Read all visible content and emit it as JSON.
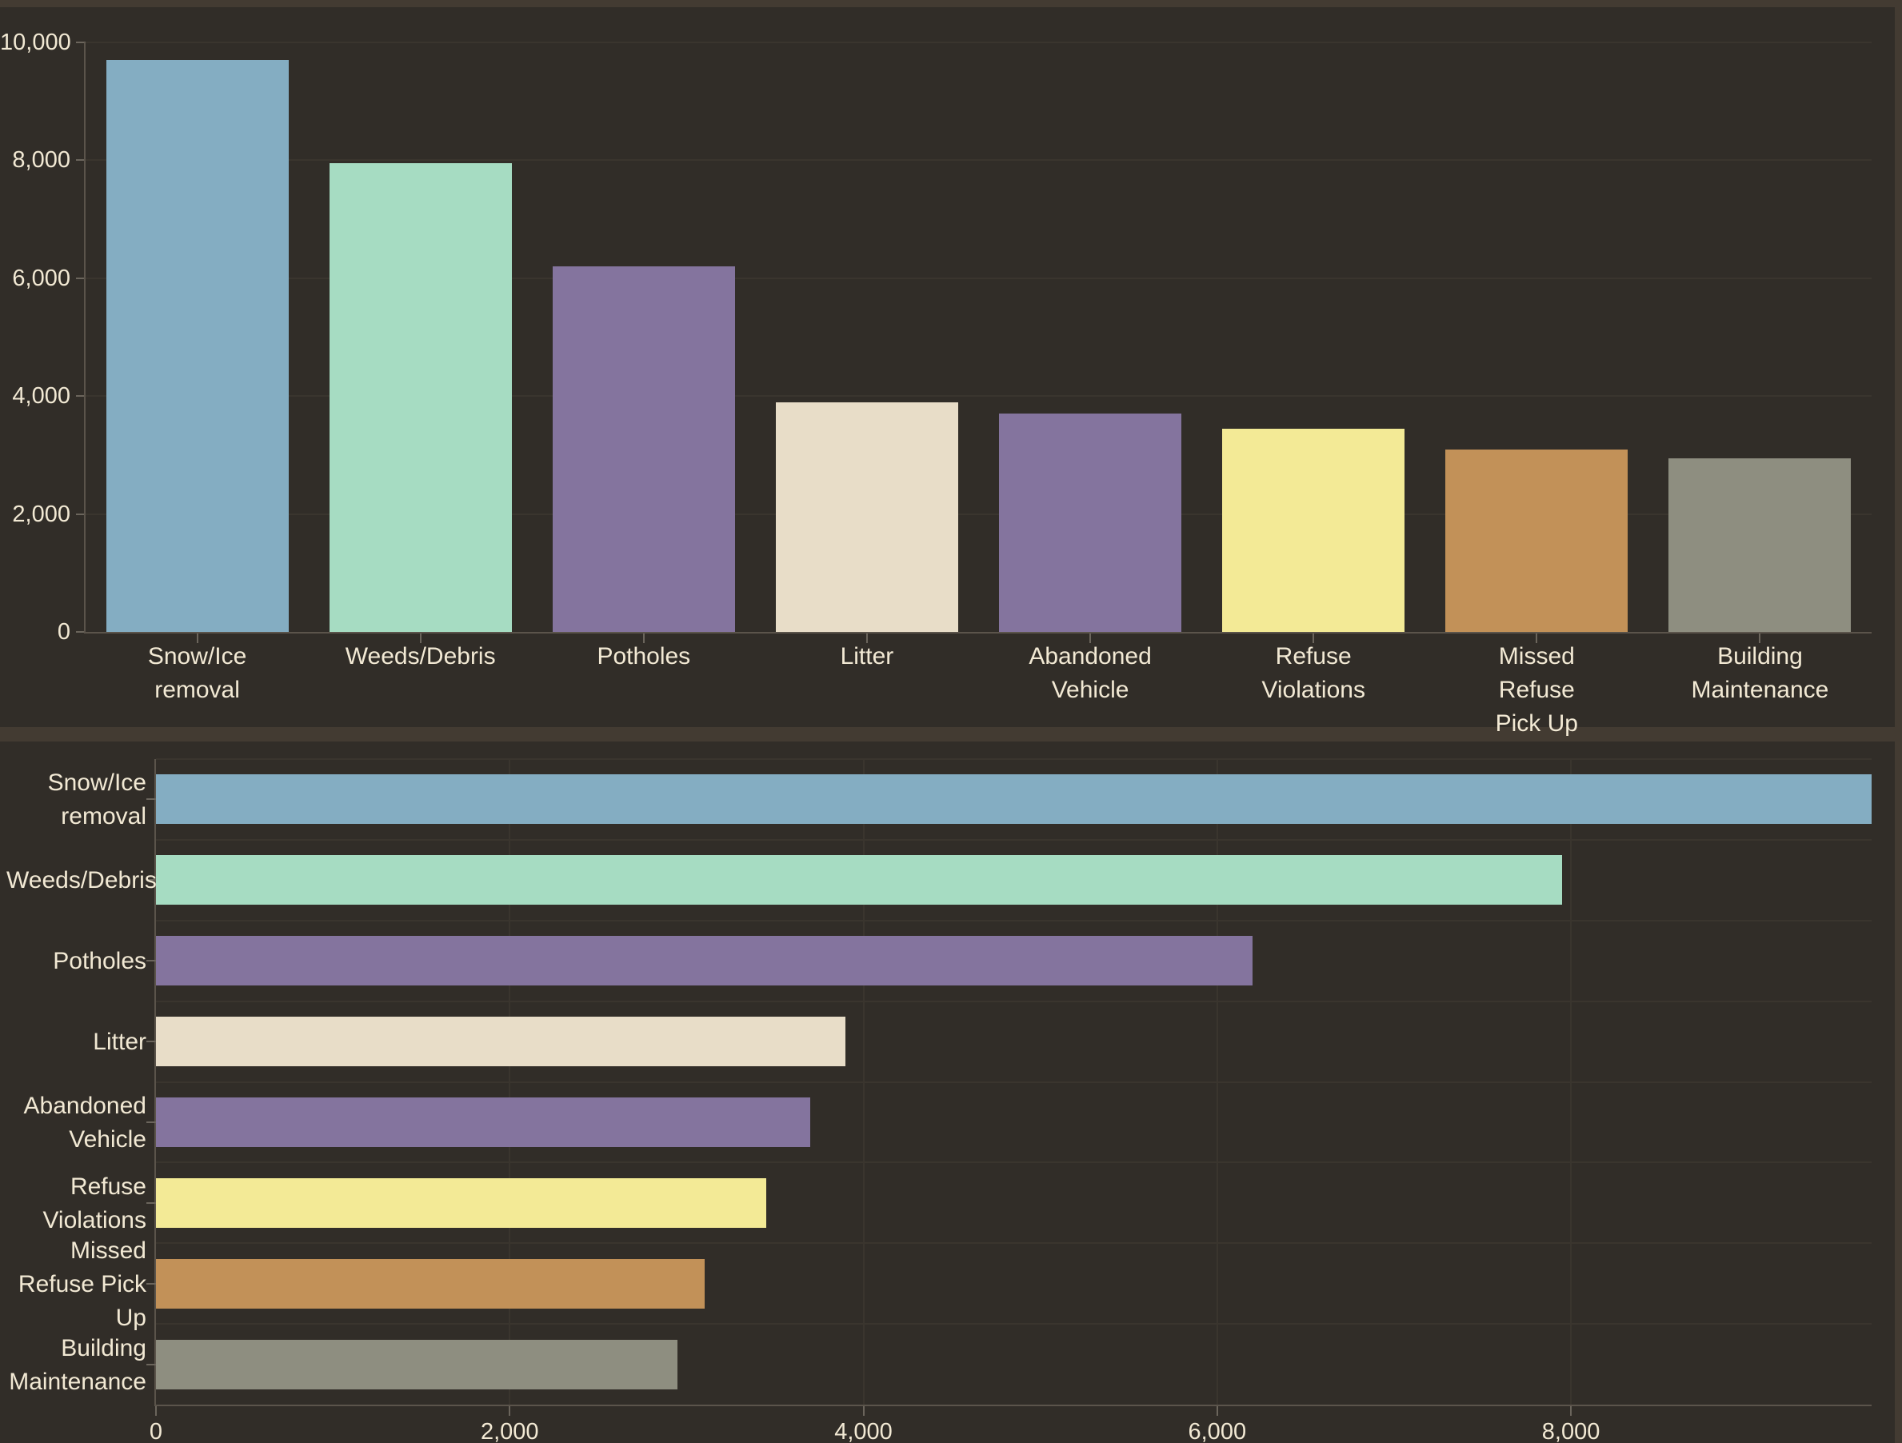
{
  "app": {
    "description": "Dashboard with two chart panels showing service request counts by category",
    "background_color": "#312D28",
    "panel_border_color": "#433B32"
  },
  "colors": {
    "background": "#312D28",
    "panel_band": "#433B32",
    "gridline": "#3A352E",
    "axis_line": "#5B544B",
    "tick_mark": "#6B655C",
    "text": "#F2E9D4"
  },
  "chart_data": [
    {
      "type": "bar",
      "orientation": "vertical",
      "title": "",
      "xlabel": "",
      "ylabel": "",
      "categories": [
        "Snow/Ice removal",
        "Weeds/Debris",
        "Potholes",
        "Litter",
        "Abandoned Vehicle",
        "Refuse Violations",
        "Missed Refuse Pick Up",
        "Building Maintenance"
      ],
      "category_labels": [
        "Snow/Ice\nremoval",
        "Weeds/Debris",
        "Potholes",
        "Litter",
        "Abandoned\nVehicle",
        "Refuse\nViolations",
        "Missed\nRefuse\nPick Up",
        "Building\nMaintenance"
      ],
      "values": [
        9700,
        7950,
        6200,
        3900,
        3700,
        3450,
        3100,
        2950
      ],
      "bar_colors": [
        "#84ADC2",
        "#A6DCC2",
        "#84749E",
        "#E8DDC8",
        "#84749E",
        "#F3EA96",
        "#C29158",
        "#8E8E80"
      ],
      "ylim": [
        0,
        10000
      ],
      "yticks": [
        {
          "v": 0,
          "label": "0"
        },
        {
          "v": 2000,
          "label": "2,000"
        },
        {
          "v": 4000,
          "label": "4,000"
        },
        {
          "v": 6000,
          "label": "6,000"
        },
        {
          "v": 8000,
          "label": "8,000"
        },
        {
          "v": 10000,
          "label": "10,000"
        }
      ],
      "grid": true,
      "legend": false
    },
    {
      "type": "bar",
      "orientation": "horizontal",
      "title": "",
      "xlabel": "",
      "ylabel": "",
      "categories": [
        "Snow/Ice removal",
        "Weeds/Debris",
        "Potholes",
        "Litter",
        "Abandoned Vehicle",
        "Refuse Violations",
        "Missed Refuse Pick Up",
        "Building Maintenance"
      ],
      "category_labels": [
        "Snow/Ice\nremoval",
        "Weeds/Debris",
        "Potholes",
        "Litter",
        "Abandoned\nVehicle",
        "Refuse\nViolations",
        "Missed\nRefuse Pick\nUp",
        "Building\nMaintenance"
      ],
      "values": [
        9700,
        7950,
        6200,
        3900,
        3700,
        3450,
        3100,
        2950
      ],
      "bar_colors": [
        "#84ADC2",
        "#A6DCC2",
        "#84749E",
        "#E8DDC8",
        "#84749E",
        "#F3EA96",
        "#C29158",
        "#8E8E80"
      ],
      "xlim": [
        0,
        9700
      ],
      "xticks": [
        {
          "v": 0,
          "label": "0"
        },
        {
          "v": 2000,
          "label": "2,000"
        },
        {
          "v": 4000,
          "label": "4,000"
        },
        {
          "v": 6000,
          "label": "6,000"
        },
        {
          "v": 8000,
          "label": "8,000"
        }
      ],
      "grid": true,
      "legend": false
    }
  ]
}
